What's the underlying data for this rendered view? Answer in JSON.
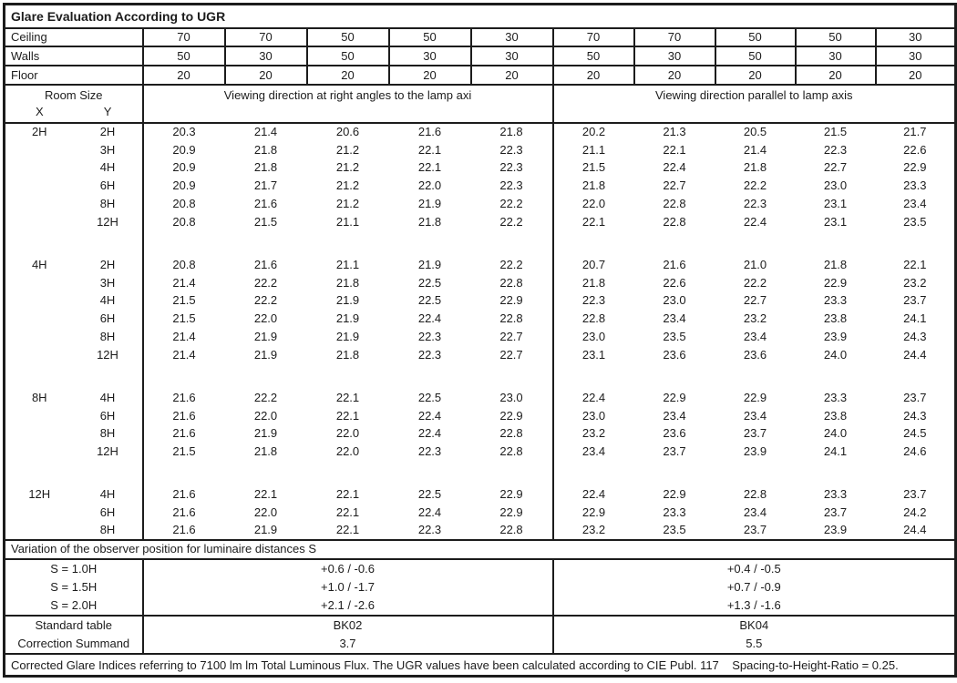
{
  "title": "Glare Evaluation According to UGR",
  "colors": {
    "border": "#1c1c1c",
    "text": "#1c1c1c",
    "background": "#ffffff"
  },
  "surface_reflectances": {
    "rows": [
      {
        "label": "Ceiling",
        "values": [
          "70",
          "70",
          "50",
          "50",
          "30",
          "70",
          "70",
          "50",
          "50",
          "30"
        ]
      },
      {
        "label": "Walls",
        "values": [
          "50",
          "30",
          "50",
          "30",
          "30",
          "50",
          "30",
          "50",
          "30",
          "30"
        ]
      },
      {
        "label": "Floor",
        "values": [
          "20",
          "20",
          "20",
          "20",
          "20",
          "20",
          "20",
          "20",
          "20",
          "20"
        ]
      }
    ]
  },
  "header": {
    "room_size_label": "Room Size",
    "x_label": "X",
    "y_label": "Y",
    "left_heading": "Viewing direction at right angles to the lamp axi",
    "right_heading": "Viewing direction parallel to lamp axis"
  },
  "ugr_blocks": [
    {
      "x": "2H",
      "rows": [
        {
          "y": "2H",
          "left": [
            "20.3",
            "21.4",
            "20.6",
            "21.6",
            "21.8"
          ],
          "right": [
            "20.2",
            "21.3",
            "20.5",
            "21.5",
            "21.7"
          ]
        },
        {
          "y": "3H",
          "left": [
            "20.9",
            "21.8",
            "21.2",
            "22.1",
            "22.3"
          ],
          "right": [
            "21.1",
            "22.1",
            "21.4",
            "22.3",
            "22.6"
          ]
        },
        {
          "y": "4H",
          "left": [
            "20.9",
            "21.8",
            "21.2",
            "22.1",
            "22.3"
          ],
          "right": [
            "21.5",
            "22.4",
            "21.8",
            "22.7",
            "22.9"
          ]
        },
        {
          "y": "6H",
          "left": [
            "20.9",
            "21.7",
            "21.2",
            "22.0",
            "22.3"
          ],
          "right": [
            "21.8",
            "22.7",
            "22.2",
            "23.0",
            "23.3"
          ]
        },
        {
          "y": "8H",
          "left": [
            "20.8",
            "21.6",
            "21.2",
            "21.9",
            "22.2"
          ],
          "right": [
            "22.0",
            "22.8",
            "22.3",
            "23.1",
            "23.4"
          ]
        },
        {
          "y": "12H",
          "left": [
            "20.8",
            "21.5",
            "21.1",
            "21.8",
            "22.2"
          ],
          "right": [
            "22.1",
            "22.8",
            "22.4",
            "23.1",
            "23.5"
          ]
        }
      ]
    },
    {
      "x": "4H",
      "rows": [
        {
          "y": "2H",
          "left": [
            "20.8",
            "21.6",
            "21.1",
            "21.9",
            "22.2"
          ],
          "right": [
            "20.7",
            "21.6",
            "21.0",
            "21.8",
            "22.1"
          ]
        },
        {
          "y": "3H",
          "left": [
            "21.4",
            "22.2",
            "21.8",
            "22.5",
            "22.8"
          ],
          "right": [
            "21.8",
            "22.6",
            "22.2",
            "22.9",
            "23.2"
          ]
        },
        {
          "y": "4H",
          "left": [
            "21.5",
            "22.2",
            "21.9",
            "22.5",
            "22.9"
          ],
          "right": [
            "22.3",
            "23.0",
            "22.7",
            "23.3",
            "23.7"
          ]
        },
        {
          "y": "6H",
          "left": [
            "21.5",
            "22.0",
            "21.9",
            "22.4",
            "22.8"
          ],
          "right": [
            "22.8",
            "23.4",
            "23.2",
            "23.8",
            "24.1"
          ]
        },
        {
          "y": "8H",
          "left": [
            "21.4",
            "21.9",
            "21.9",
            "22.3",
            "22.7"
          ],
          "right": [
            "23.0",
            "23.5",
            "23.4",
            "23.9",
            "24.3"
          ]
        },
        {
          "y": "12H",
          "left": [
            "21.4",
            "21.9",
            "21.8",
            "22.3",
            "22.7"
          ],
          "right": [
            "23.1",
            "23.6",
            "23.6",
            "24.0",
            "24.4"
          ]
        }
      ]
    },
    {
      "x": "8H",
      "rows": [
        {
          "y": "4H",
          "left": [
            "21.6",
            "22.2",
            "22.1",
            "22.5",
            "23.0"
          ],
          "right": [
            "22.4",
            "22.9",
            "22.9",
            "23.3",
            "23.7"
          ]
        },
        {
          "y": "6H",
          "left": [
            "21.6",
            "22.0",
            "22.1",
            "22.4",
            "22.9"
          ],
          "right": [
            "23.0",
            "23.4",
            "23.4",
            "23.8",
            "24.3"
          ]
        },
        {
          "y": "8H",
          "left": [
            "21.6",
            "21.9",
            "22.0",
            "22.4",
            "22.8"
          ],
          "right": [
            "23.2",
            "23.6",
            "23.7",
            "24.0",
            "24.5"
          ]
        },
        {
          "y": "12H",
          "left": [
            "21.5",
            "21.8",
            "22.0",
            "22.3",
            "22.8"
          ],
          "right": [
            "23.4",
            "23.7",
            "23.9",
            "24.1",
            "24.6"
          ]
        }
      ]
    },
    {
      "x": "12H",
      "rows": [
        {
          "y": "4H",
          "left": [
            "21.6",
            "22.1",
            "22.1",
            "22.5",
            "22.9"
          ],
          "right": [
            "22.4",
            "22.9",
            "22.8",
            "23.3",
            "23.7"
          ]
        },
        {
          "y": "6H",
          "left": [
            "21.6",
            "22.0",
            "22.1",
            "22.4",
            "22.9"
          ],
          "right": [
            "22.9",
            "23.3",
            "23.4",
            "23.7",
            "24.2"
          ]
        },
        {
          "y": "8H",
          "left": [
            "21.6",
            "21.9",
            "22.1",
            "22.3",
            "22.8"
          ],
          "right": [
            "23.2",
            "23.5",
            "23.7",
            "23.9",
            "24.4"
          ]
        }
      ]
    }
  ],
  "variation": {
    "heading": "Variation of the observer position for luminaire distances S",
    "rows": [
      {
        "label": "S = 1.0H",
        "left": "+0.6 / -0.6",
        "right": "+0.4 / -0.5"
      },
      {
        "label": "S = 1.5H",
        "left": "+1.0 / -1.7",
        "right": "+0.7 / -0.9"
      },
      {
        "label": "S = 2.0H",
        "left": "+2.1 / -2.6",
        "right": "+1.3 / -1.6"
      }
    ]
  },
  "summary_rows": [
    {
      "label": "Standard table",
      "left": "BK02",
      "right": "BK04"
    },
    {
      "label": "Correction Summand",
      "left": "3.7",
      "right": "5.5"
    }
  ],
  "footer_note": "Corrected Glare Indices referring to 7100 lm lm Total Luminous Flux. The UGR values have been calculated according to CIE Publ. 117    Spacing-to-Height-Ratio = 0.25."
}
